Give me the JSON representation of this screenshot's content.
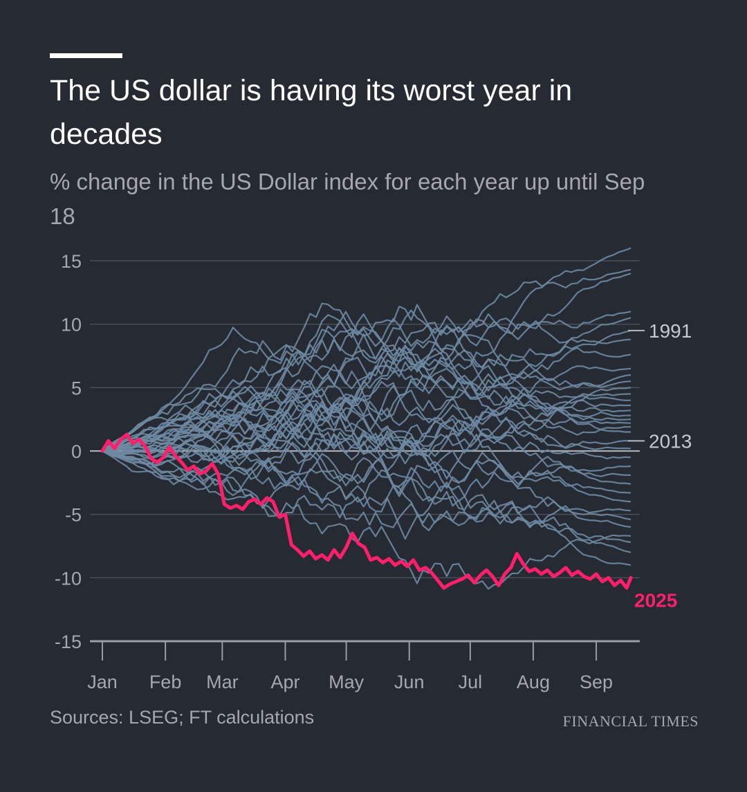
{
  "header": {
    "title": "The US dollar is having its worst year in decades",
    "subtitle": "% change in the US Dollar index for each year up until Sep 18"
  },
  "footer": {
    "source": "Sources: LSEG; FT calculations",
    "brand": "FINANCIAL TIMES"
  },
  "colors": {
    "background": "#262a33",
    "history": "#6f8aa3",
    "highlight": "#ff1f6b",
    "grid": "#4a4e57",
    "axis": "#9a9da3",
    "text": "#a6a8ad"
  },
  "chart_data": {
    "type": "line",
    "title": "The US dollar is having its worst year in decades",
    "ylabel": "% change in the US Dollar index for each year up until Sep 18",
    "x_unit": "day of year",
    "xlim": [
      1,
      261
    ],
    "ylim": [
      -15,
      16
    ],
    "yticks": [
      15,
      10,
      5,
      0,
      -5,
      -10,
      -15
    ],
    "xticks": [
      {
        "label": "Jan",
        "day": 1
      },
      {
        "label": "Feb",
        "day": 32
      },
      {
        "label": "Mar",
        "day": 60
      },
      {
        "label": "Apr",
        "day": 91
      },
      {
        "label": "May",
        "day": 121
      },
      {
        "label": "Jun",
        "day": 152
      },
      {
        "label": "Jul",
        "day": 182
      },
      {
        "label": "Aug",
        "day": 213
      },
      {
        "label": "Sep",
        "day": 244
      }
    ],
    "grid": true,
    "labeled_series": [
      {
        "name": "1991",
        "end_value": 9.5
      },
      {
        "name": "2013",
        "end_value": 0.8
      },
      {
        "name": "2025",
        "end_value": -10.0
      }
    ],
    "highlight": {
      "name": "2025",
      "x": [
        1,
        4,
        7,
        10,
        13,
        16,
        19,
        22,
        25,
        28,
        31,
        34,
        37,
        40,
        43,
        46,
        49,
        52,
        55,
        58,
        61,
        64,
        67,
        70,
        73,
        76,
        79,
        82,
        85,
        88,
        91,
        94,
        97,
        100,
        103,
        106,
        109,
        112,
        115,
        118,
        121,
        124,
        127,
        130,
        133,
        136,
        139,
        142,
        145,
        148,
        151,
        154,
        157,
        160,
        163,
        166,
        169,
        172,
        175,
        178,
        181,
        184,
        187,
        190,
        193,
        196,
        199,
        202,
        205,
        208,
        211,
        214,
        217,
        220,
        223,
        226,
        229,
        232,
        235,
        238,
        241,
        244,
        247,
        250,
        253,
        256,
        259,
        261
      ],
      "values": [
        0,
        0.8,
        0.2,
        0.9,
        1.3,
        0.6,
        0.9,
        0.4,
        -0.6,
        -0.9,
        -0.5,
        0.3,
        -0.4,
        -0.9,
        -1.5,
        -1.2,
        -1.8,
        -1.6,
        -1.0,
        -1.8,
        -4.2,
        -4.5,
        -4.3,
        -4.6,
        -4.0,
        -3.8,
        -4.2,
        -3.7,
        -4.0,
        -5.2,
        -5.0,
        -7.4,
        -7.8,
        -8.3,
        -7.9,
        -8.5,
        -8.2,
        -8.6,
        -7.8,
        -8.4,
        -7.6,
        -6.5,
        -7.3,
        -7.6,
        -8.6,
        -8.4,
        -8.8,
        -8.5,
        -9.0,
        -8.7,
        -9.1,
        -8.6,
        -9.4,
        -9.2,
        -9.6,
        -10.2,
        -10.8,
        -10.5,
        -10.3,
        -10.1,
        -9.8,
        -10.4,
        -9.8,
        -9.4,
        -9.9,
        -10.6,
        -9.7,
        -9.2,
        -8.1,
        -8.9,
        -9.5,
        -9.3,
        -9.7,
        -9.4,
        -9.9,
        -9.6,
        -9.2,
        -9.8,
        -9.5,
        -9.9,
        -10.1,
        -9.7,
        -10.3,
        -10.0,
        -10.6,
        -10.2,
        -10.8,
        -10.0
      ]
    },
    "history": {
      "series_count": 36,
      "end_values": [
        16.0,
        14.3,
        14.0,
        11.0,
        10.5,
        9.5,
        8.8,
        7.6,
        6.5,
        6.0,
        5.5,
        5.0,
        4.5,
        4.0,
        3.6,
        3.2,
        2.8,
        2.5,
        2.2,
        1.9,
        1.5,
        0.8,
        0.2,
        -0.5,
        -1.2,
        -1.9,
        -2.6,
        -3.3,
        -4.0,
        -4.7,
        -5.4,
        -6.0,
        -6.7,
        -7.2,
        -8.0,
        -9.0
      ],
      "note_extremes": {
        "max": 16.8,
        "min": -10.8
      }
    }
  }
}
